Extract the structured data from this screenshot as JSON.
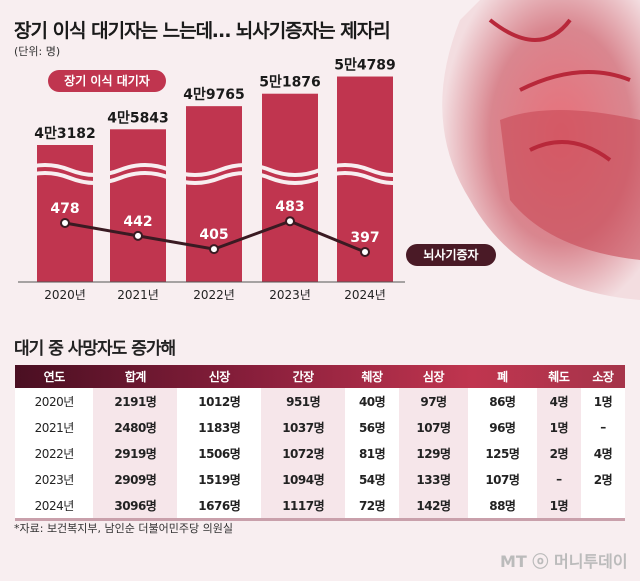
{
  "title": "장기 이식 대기자는 느는데… 뇌사기증자는 제자리",
  "unit": "(단위: 명)",
  "chart_data": {
    "type": "bar+line",
    "categories": [
      "2020년",
      "2021년",
      "2022년",
      "2023년",
      "2024년"
    ],
    "series": [
      {
        "name": "장기 이식 대기자",
        "type": "bar",
        "values": [
          43182,
          45843,
          49765,
          51876,
          54789
        ],
        "labels": [
          "4만3182",
          "4만5843",
          "4만9765",
          "5만1876",
          "5만4789"
        ],
        "color": "#c0354f"
      },
      {
        "name": "뇌사기증자",
        "type": "line",
        "values": [
          478,
          442,
          405,
          483,
          397
        ],
        "labels": [
          "478",
          "442",
          "405",
          "483",
          "397"
        ],
        "color": "#3a1a22"
      }
    ],
    "axis_break": true
  },
  "subtitle": "대기 중 사망자도 증가해",
  "table": {
    "headers": [
      "연도",
      "합계",
      "신장",
      "간장",
      "췌장",
      "심장",
      "폐",
      "췌도",
      "소장"
    ],
    "rows": [
      [
        "2020년",
        "2191명",
        "1012명",
        "951명",
        "40명",
        "97명",
        "86명",
        "4명",
        "1명"
      ],
      [
        "2021년",
        "2480명",
        "1183명",
        "1037명",
        "56명",
        "107명",
        "96명",
        "1명",
        "–"
      ],
      [
        "2022년",
        "2919명",
        "1506명",
        "1072명",
        "81명",
        "129명",
        "125명",
        "2명",
        "4명"
      ],
      [
        "2023년",
        "2909명",
        "1519명",
        "1094명",
        "54명",
        "133명",
        "107명",
        "–",
        "2명"
      ],
      [
        "2024년",
        "3096명",
        "1676명",
        "1117명",
        "72명",
        "142명",
        "88명",
        "1명",
        ""
      ]
    ]
  },
  "note": "*자료: 보건복지부, 남인순 더불어민주당 의원실",
  "logo": "MT ⓞ 머니투데이"
}
